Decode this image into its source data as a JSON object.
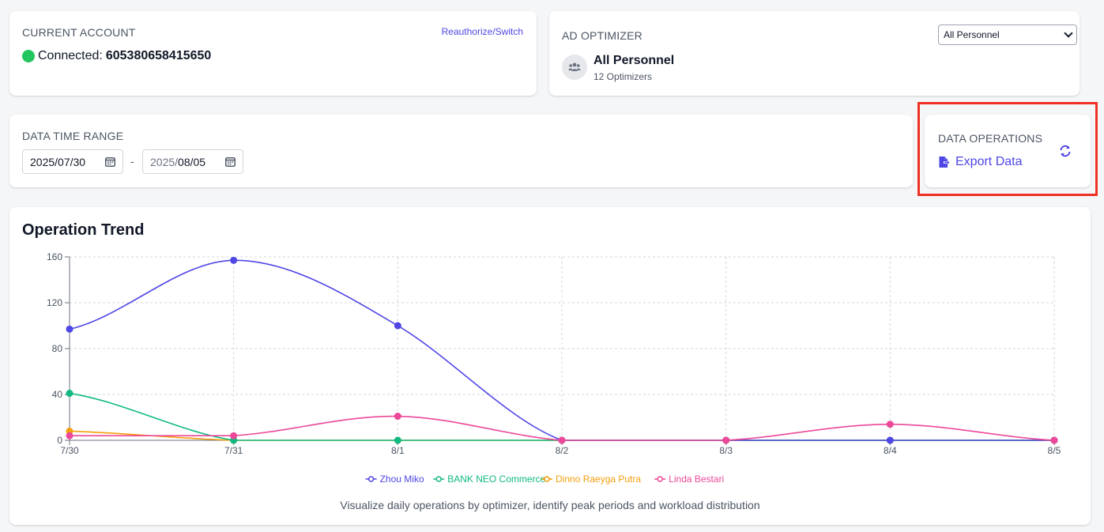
{
  "account": {
    "label": "CURRENT ACCOUNT",
    "reauth_link": "Reauthorize/Switch",
    "status_text": "Connected:",
    "account_id": "605380658415650",
    "status_color": "#22c55e"
  },
  "optimizer": {
    "label": "AD OPTIMIZER",
    "select_value": "All Personnel",
    "name": "All Personnel",
    "subtitle": "12 Optimizers",
    "avatar_icon": "users-icon"
  },
  "date_range": {
    "label": "DATA TIME RANGE",
    "start": "2025/07/30",
    "end_year": "2025/",
    "end_rest": "08/05",
    "separator": "-",
    "icon": "calendar-icon"
  },
  "data_ops": {
    "label": "DATA OPERATIONS",
    "export_label": "Export Data",
    "export_icon": "file-export-icon",
    "refresh_icon": "refresh-icon",
    "accent": "#4f46e5",
    "highlight_color": "#ef3124"
  },
  "chart": {
    "title": "Operation Trend",
    "description": "Visualize daily operations by optimizer, identify peak periods and workload distribution"
  },
  "chart_data": {
    "type": "line",
    "title": "Operation Trend",
    "x": [
      "7/30",
      "7/31",
      "8/1",
      "8/2",
      "8/3",
      "8/4",
      "8/5"
    ],
    "ylim": [
      0,
      160
    ],
    "yticks": [
      0,
      40,
      80,
      120,
      160
    ],
    "grid": true,
    "legend_position": "bottom",
    "series": [
      {
        "name": "Zhou Miko",
        "color": "#4f46e5",
        "values": [
          97,
          157,
          100,
          0,
          0,
          0,
          0
        ]
      },
      {
        "name": "BANK NEO Commerce",
        "color": "#10b981",
        "values": [
          41,
          0,
          0,
          0,
          0,
          0,
          0
        ]
      },
      {
        "name": "Dinno Raeyga Putra",
        "color": "#f59e0b",
        "values": [
          8,
          0,
          0,
          0,
          0,
          0,
          0
        ]
      },
      {
        "name": "Linda Bestari",
        "color": "#ec4899",
        "values": [
          4,
          4,
          21,
          0,
          0,
          14,
          0
        ]
      }
    ]
  }
}
